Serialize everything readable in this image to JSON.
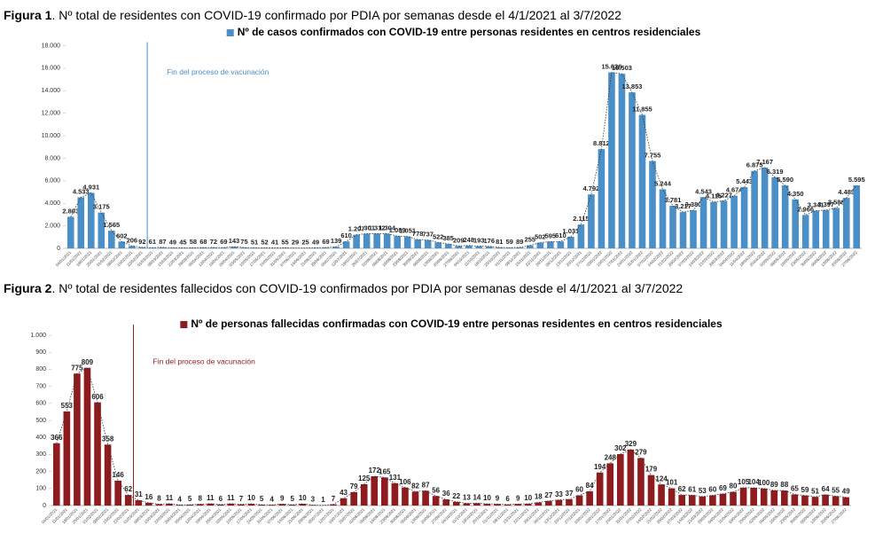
{
  "chart_data": [
    {
      "type": "bar",
      "figure": "Figura 1",
      "title": ". Nº total de residentes con COVID-19 confirmado por PDIA por semanas desde el 4/1/2021 al 3/7/2022",
      "annotation": {
        "text": "Fin del proceso de vacunación",
        "x": "01/03/2021"
      },
      "categories": [
        "04/01/2021",
        "11/01/2021",
        "18/01/2021",
        "25/01/2021",
        "01/02/2021",
        "08/02/2021",
        "15/02/2021",
        "22/02/2021",
        "01/03/2021",
        "08/03/2021",
        "15/03/2021",
        "22/03/2021",
        "29/03/2021",
        "05/04/2021",
        "12/04/2021",
        "19/04/2021",
        "26/04/2021",
        "03/05/2021",
        "10/05/2021",
        "17/05/2021",
        "24/05/2021",
        "31/05/2021",
        "07/06/2021",
        "14/06/2021",
        "21/06/2021",
        "28/06/2021",
        "05/07/2021",
        "12/07/2021",
        "19/07/2021",
        "26/07/2021",
        "02/08/2021",
        "09/08/2021",
        "16/08/2021",
        "23/08/2021",
        "30/08/2021",
        "06/09/2021",
        "13/09/2021",
        "20/09/2021",
        "27/09/2021",
        "04/10/2021",
        "11/10/2021",
        "18/10/2021",
        "25/10/2021",
        "01/11/2021",
        "08/11/2021",
        "15/11/2021",
        "22/11/2021",
        "29/11/2021",
        "06/12/2021",
        "13/12/2021",
        "20/12/2021",
        "27/12/2021",
        "03/01/2022",
        "10/01/2022",
        "17/01/2022",
        "24/01/2022",
        "31/01/2022",
        "07/02/2022",
        "14/02/2022",
        "21/02/2022",
        "28/02/2022",
        "07/03/2022",
        "14/03/2022",
        "21/03/2022",
        "28/03/2022",
        "04/04/2022",
        "11/04/2022",
        "18/04/2022",
        "25/04/2022",
        "02/05/2022",
        "09/05/2022",
        "16/05/2022",
        "23/05/2022",
        "30/05/2022",
        "06/06/2022",
        "13/06/2022",
        "20/06/2022",
        "27/06/2022"
      ],
      "series": [
        {
          "name": "Nº de casos confirmados con COVID-19 entre personas residentes en centros residenciales",
          "color": "#4a8fc7",
          "values": [
            2803,
            4533,
            4931,
            3175,
            1565,
            602,
            206,
            92,
            61,
            87,
            49,
            45,
            58,
            68,
            72,
            69,
            143,
            75,
            51,
            52,
            41,
            55,
            29,
            25,
            49,
            69,
            139,
            610,
            1207,
            1301,
            1312,
            1304,
            1089,
            1051,
            778,
            737,
            522,
            385,
            209,
            248,
            193,
            176,
            81,
            59,
            89,
            255,
            502,
            595,
            610,
            1031,
            2115,
            4792,
            8812,
            15626,
            15503,
            13853,
            11855,
            7755,
            5244,
            3781,
            3217,
            3380,
            4543,
            4115,
            4227,
            4674,
            5443,
            6875,
            7167,
            6319,
            5590,
            4350,
            2966,
            3341,
            3397,
            3586,
            4483,
            5595
          ],
          "value_labels": [
            "2.803",
            "4.533",
            "4.931",
            "3.175",
            "1.565",
            "602",
            "206",
            "92",
            "61",
            "87",
            "49",
            "45",
            "58",
            "68",
            "72",
            "69",
            "143",
            "75",
            "51",
            "52",
            "41",
            "55",
            "29",
            "25",
            "49",
            "69",
            "139",
            "610",
            "1.207",
            "1.301",
            "1.312",
            "1.304",
            "1.089",
            "1.051",
            "778",
            "737",
            "522",
            "385",
            "209",
            "248",
            "193",
            "176",
            "81",
            "59",
            "89",
            "255",
            "502",
            "595",
            "610",
            "1.031",
            "2.115",
            "4.792",
            "8.812",
            "15.626",
            "15.503",
            "13.853",
            "11.855",
            "7.755",
            "5.244",
            "3.781",
            "3.217",
            "3.380",
            "4.543",
            "4.115",
            "4.227",
            "4.674",
            "5.443",
            "6.875",
            "7.167",
            "6.319",
            "5.590",
            "4.350",
            "2.966",
            "3.341",
            "3.397",
            "3.586",
            "4.483",
            "5.595"
          ]
        }
      ],
      "ylim": [
        0,
        18000
      ],
      "yticks": [
        0,
        {
          "value": 2000,
          "label": "2.000"
        },
        {
          "value": 4000,
          "label": "4.000"
        },
        {
          "value": 6000,
          "label": "6.000"
        },
        {
          "value": 8000,
          "label": "8.000"
        },
        {
          "value": 10000,
          "label": "10.000"
        },
        {
          "value": 12000,
          "label": "12.000"
        },
        {
          "value": 14000,
          "label": "14.000"
        },
        {
          "value": 16000,
          "label": "16.000"
        },
        {
          "value": 18000,
          "label": "18.000"
        }
      ],
      "grid": false,
      "trend_line": true
    },
    {
      "type": "bar",
      "figure": "Figura 2",
      "title": ". Nº total de residentes fallecidos con COVID-19 confirmados por PDIA por semanas desde el 4/1/2021 al 3/7/2022",
      "annotation": {
        "text": "Fin del proceso de vacunación",
        "x": "01/03/2021"
      },
      "categories": [
        "04/01/2021",
        "11/01/2021",
        "18/01/2021",
        "25/01/2021",
        "01/02/2021",
        "08/02/2021",
        "15/02/2021",
        "22/02/2021",
        "01/03/2021",
        "08/03/2021",
        "15/03/2021",
        "22/03/2021",
        "29/03/2021",
        "05/04/2021",
        "12/04/2021",
        "19/04/2021",
        "26/04/2021",
        "03/05/2021",
        "10/05/2021",
        "17/05/2021",
        "24/05/2021",
        "31/05/2021",
        "07/06/2021",
        "14/06/2021",
        "21/06/2021",
        "28/06/2021",
        "05/07/2021",
        "12/07/2021",
        "19/07/2021",
        "26/07/2021",
        "02/08/2021",
        "09/08/2021",
        "16/08/2021",
        "23/08/2021",
        "30/08/2021",
        "06/09/2021",
        "13/09/2021",
        "20/09/2021",
        "27/09/2021",
        "04/10/2021",
        "11/10/2021",
        "18/10/2021",
        "25/10/2021",
        "01/11/2021",
        "08/11/2021",
        "15/11/2021",
        "22/11/2021",
        "29/11/2021",
        "06/12/2021",
        "13/12/2021",
        "20/12/2021",
        "27/12/2021",
        "03/01/2022",
        "10/01/2022",
        "17/01/2022",
        "24/01/2022",
        "31/01/2022",
        "07/02/2022",
        "14/02/2022",
        "21/02/2022",
        "28/02/2022",
        "07/03/2022",
        "14/03/2022",
        "21/03/2022",
        "28/03/2022",
        "04/04/2022",
        "11/04/2022",
        "18/04/2022",
        "25/04/2022",
        "02/05/2022",
        "09/05/2022",
        "16/05/2022",
        "23/05/2022",
        "30/05/2022",
        "06/06/2022",
        "13/06/2022",
        "20/06/2022",
        "27/06/2022"
      ],
      "series": [
        {
          "name": "Nº de personas fallecidas confirmadas con COVID-19 entre personas residentes en centros residenciales",
          "color": "#8e1b1e",
          "values": [
            366,
            553,
            775,
            809,
            606,
            358,
            146,
            62,
            31,
            16,
            8,
            11,
            4,
            5,
            8,
            11,
            6,
            11,
            7,
            10,
            5,
            4,
            9,
            5,
            10,
            3,
            1,
            7,
            43,
            79,
            125,
            172,
            165,
            131,
            106,
            82,
            87,
            56,
            36,
            22,
            13,
            14,
            10,
            9,
            6,
            9,
            10,
            18,
            27,
            33,
            37,
            60,
            84,
            194,
            248,
            302,
            329,
            279,
            179,
            124,
            101,
            62,
            61,
            53,
            60,
            69,
            80,
            105,
            104,
            100,
            89,
            88,
            65,
            59,
            51,
            64,
            55,
            49
          ]
        }
      ],
      "ylim": [
        0,
        1000
      ],
      "yticks": [
        0,
        100,
        200,
        300,
        400,
        500,
        600,
        700,
        800,
        900,
        {
          "value": 1000,
          "label": "1.000"
        }
      ],
      "grid": false,
      "trend_line": true
    }
  ]
}
